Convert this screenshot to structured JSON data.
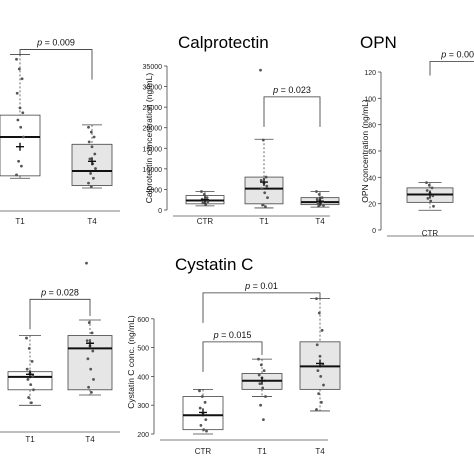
{
  "chart_data": [
    {
      "type": "boxplot",
      "title": "",
      "ylabel": "",
      "ylim": [
        0,
        350
      ],
      "categories": [
        "T1",
        "T4"
      ],
      "boxes": [
        {
          "name": "T1",
          "whisker_low": 55,
          "q1": 60,
          "median": 140,
          "q3": 185,
          "whisker_high": 310,
          "mean": 120,
          "points": [
            300,
            280,
            260,
            230,
            200,
            190,
            175,
            160,
            140,
            90,
            80,
            62
          ]
        },
        {
          "name": "T4",
          "whisker_low": 35,
          "q1": 40,
          "median": 70,
          "q3": 125,
          "whisker_high": 165,
          "mean": 90,
          "points": [
            160,
            150,
            140,
            130,
            120,
            105,
            95,
            85,
            75,
            65,
            55,
            45,
            38
          ]
        }
      ],
      "annotations": [
        {
          "text": "p = 0.009",
          "from": "T1",
          "to": "T4",
          "y": 320
        }
      ]
    },
    {
      "type": "boxplot",
      "title": "Calprotectin",
      "ylabel": "Calprotectin concentration (ng/mL)",
      "ylim": [
        0,
        35000
      ],
      "yticks": [
        0,
        5000,
        10000,
        15000,
        20000,
        25000,
        30000,
        35000
      ],
      "categories": [
        "CTR",
        "T1",
        "T4"
      ],
      "boxes": [
        {
          "name": "CTR",
          "whisker_low": 1000,
          "q1": 1500,
          "median": 2300,
          "q3": 3500,
          "whisker_high": 4500,
          "mean": 2500,
          "points": [
            4500,
            3800,
            3000,
            2600,
            2300,
            2000,
            1700,
            1400
          ]
        },
        {
          "name": "T1",
          "whisker_low": 500,
          "q1": 1500,
          "median": 5200,
          "q3": 8000,
          "whisker_high": 17200,
          "mean": 6800,
          "points": [
            34000,
            17000,
            8000,
            7200,
            6500,
            5800,
            5200,
            4200,
            3000,
            1200,
            800
          ]
        },
        {
          "name": "T4",
          "whisker_low": 700,
          "q1": 1300,
          "median": 1900,
          "q3": 3000,
          "whisker_high": 4500,
          "mean": 2100,
          "points": [
            4500,
            3800,
            3000,
            2600,
            2300,
            2000,
            1700,
            1400,
            1100,
            900
          ]
        }
      ],
      "annotations": [
        {
          "text": "p = 0.023",
          "from": "T1",
          "to": "T4",
          "y": 27500
        }
      ]
    },
    {
      "type": "boxplot",
      "title": "OPN",
      "ylabel": "OPN concentration (ng/mL)",
      "ylim": [
        0,
        120
      ],
      "yticks": [
        0,
        20,
        40,
        60,
        80,
        100,
        120
      ],
      "categories": [
        "CTR"
      ],
      "boxes": [
        {
          "name": "CTR",
          "whisker_low": 15,
          "q1": 21,
          "median": 27,
          "q3": 32,
          "whisker_high": 36,
          "mean": 27,
          "points": [
            36,
            34,
            32,
            30,
            28,
            26,
            24,
            22,
            18
          ]
        }
      ],
      "annotations": [
        {
          "text": "p = 0.00",
          "from": "CTR",
          "y": 128
        }
      ]
    },
    {
      "type": "boxplot",
      "title": "",
      "ylabel": "",
      "ylim": [
        0,
        350
      ],
      "categories": [
        "T1",
        "T4"
      ],
      "boxes": [
        {
          "name": "T1",
          "whisker_low": 40,
          "q1": 70,
          "median": 95,
          "q3": 105,
          "whisker_high": 175,
          "mean": 100,
          "points": [
            170,
            150,
            125,
            110,
            102,
            97,
            90,
            80,
            70,
            55,
            45
          ]
        },
        {
          "name": "T4",
          "whisker_low": 60,
          "q1": 70,
          "median": 150,
          "q3": 175,
          "whisker_high": 205,
          "mean": 160,
          "points": [
            315,
            200,
            180,
            165,
            155,
            145,
            130,
            110,
            90,
            75,
            65
          ]
        }
      ],
      "annotations": [
        {
          "text": "p = 0.028",
          "from": "T1",
          "to": "T4",
          "y": 245
        }
      ]
    },
    {
      "type": "boxplot",
      "title": "Cystatin C",
      "ylabel": "Cystatin C conc. (ng/mL)",
      "ylim": [
        200,
        700
      ],
      "yticks": [
        200,
        300,
        400,
        500,
        600
      ],
      "categories": [
        "CTR",
        "T1",
        "T4"
      ],
      "boxes": [
        {
          "name": "CTR",
          "whisker_low": 200,
          "q1": 215,
          "median": 265,
          "q3": 330,
          "whisker_high": 355,
          "mean": 275,
          "points": [
            350,
            330,
            310,
            290,
            270,
            250,
            230,
            215,
            210
          ]
        },
        {
          "name": "T1",
          "whisker_low": 330,
          "q1": 355,
          "median": 385,
          "q3": 410,
          "whisker_high": 460,
          "mean": 385,
          "points": [
            460,
            440,
            420,
            405,
            395,
            385,
            375,
            360,
            330,
            300,
            250
          ]
        },
        {
          "name": "T4",
          "whisker_low": 280,
          "q1": 355,
          "median": 435,
          "q3": 520,
          "whisker_high": 670,
          "mean": 445,
          "points": [
            670,
            620,
            560,
            510,
            470,
            440,
            420,
            400,
            370,
            340,
            310,
            285
          ]
        }
      ],
      "annotations": [
        {
          "text": "p = 0.015",
          "from": "CTR",
          "to": "T1",
          "y": 520
        },
        {
          "text": "p = 0.01",
          "from": "CTR",
          "to": "T4",
          "y": 690
        }
      ]
    }
  ]
}
